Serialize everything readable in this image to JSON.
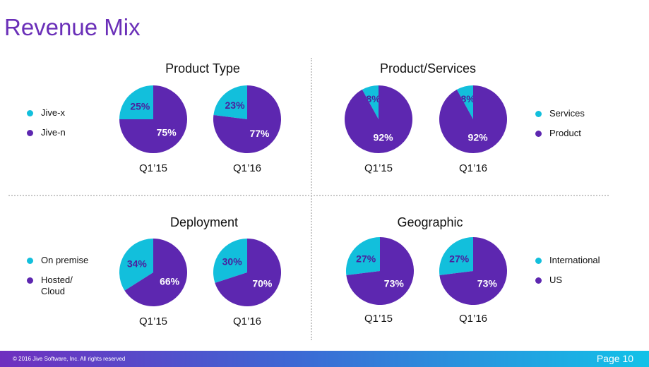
{
  "slide": {
    "title": "Revenue Mix"
  },
  "footer": {
    "copyright": "© 2016 Jive Software, Inc. All rights reserved",
    "page": "Page 10"
  },
  "colors": {
    "cyan": "#12bfdc",
    "purple": "#5d27b0",
    "title": "#6a2fb8"
  },
  "chart_data": [
    {
      "type": "pie",
      "title": "Product Type",
      "legend": [
        {
          "label": "Jive-x",
          "color": "#12bfdc"
        },
        {
          "label": "Jive-n",
          "color": "#5d27b0"
        }
      ],
      "pies": [
        {
          "period": "Q1’15",
          "slices": [
            {
              "label": "25%",
              "value": 25,
              "color": "#12bfdc"
            },
            {
              "label": "75%",
              "value": 75,
              "color": "#5d27b0"
            }
          ]
        },
        {
          "period": "Q1’16",
          "slices": [
            {
              "label": "23%",
              "value": 23,
              "color": "#12bfdc"
            },
            {
              "label": "77%",
              "value": 77,
              "color": "#5d27b0"
            }
          ]
        }
      ]
    },
    {
      "type": "pie",
      "title": "Product/Services",
      "legend": [
        {
          "label": "Services",
          "color": "#12bfdc"
        },
        {
          "label": "Product",
          "color": "#5d27b0"
        }
      ],
      "pies": [
        {
          "period": "Q1’15",
          "slices": [
            {
              "label": "8%",
              "value": 8,
              "color": "#12bfdc"
            },
            {
              "label": "92%",
              "value": 92,
              "color": "#5d27b0"
            }
          ]
        },
        {
          "period": "Q1’16",
          "slices": [
            {
              "label": "8%",
              "value": 8,
              "color": "#12bfdc"
            },
            {
              "label": "92%",
              "value": 92,
              "color": "#5d27b0"
            }
          ]
        }
      ]
    },
    {
      "type": "pie",
      "title": "Deployment",
      "legend": [
        {
          "label": "On premise",
          "color": "#12bfdc"
        },
        {
          "label": "Hosted/ Cloud",
          "color": "#5d27b0"
        }
      ],
      "pies": [
        {
          "period": "Q1’15",
          "slices": [
            {
              "label": "34%",
              "value": 34,
              "color": "#12bfdc"
            },
            {
              "label": "66%",
              "value": 66,
              "color": "#5d27b0"
            }
          ]
        },
        {
          "period": "Q1’16",
          "slices": [
            {
              "label": "30%",
              "value": 30,
              "color": "#12bfdc"
            },
            {
              "label": "70%",
              "value": 70,
              "color": "#5d27b0"
            }
          ]
        }
      ]
    },
    {
      "type": "pie",
      "title": "Geographic",
      "legend": [
        {
          "label": "International",
          "color": "#12bfdc"
        },
        {
          "label": "US",
          "color": "#5d27b0"
        }
      ],
      "pies": [
        {
          "period": "Q1’15",
          "slices": [
            {
              "label": "27%",
              "value": 27,
              "color": "#12bfdc"
            },
            {
              "label": "73%",
              "value": 73,
              "color": "#5d27b0"
            }
          ]
        },
        {
          "period": "Q1’16",
          "slices": [
            {
              "label": "27%",
              "value": 27,
              "color": "#12bfdc"
            },
            {
              "label": "73%",
              "value": 73,
              "color": "#5d27b0"
            }
          ]
        }
      ]
    }
  ]
}
